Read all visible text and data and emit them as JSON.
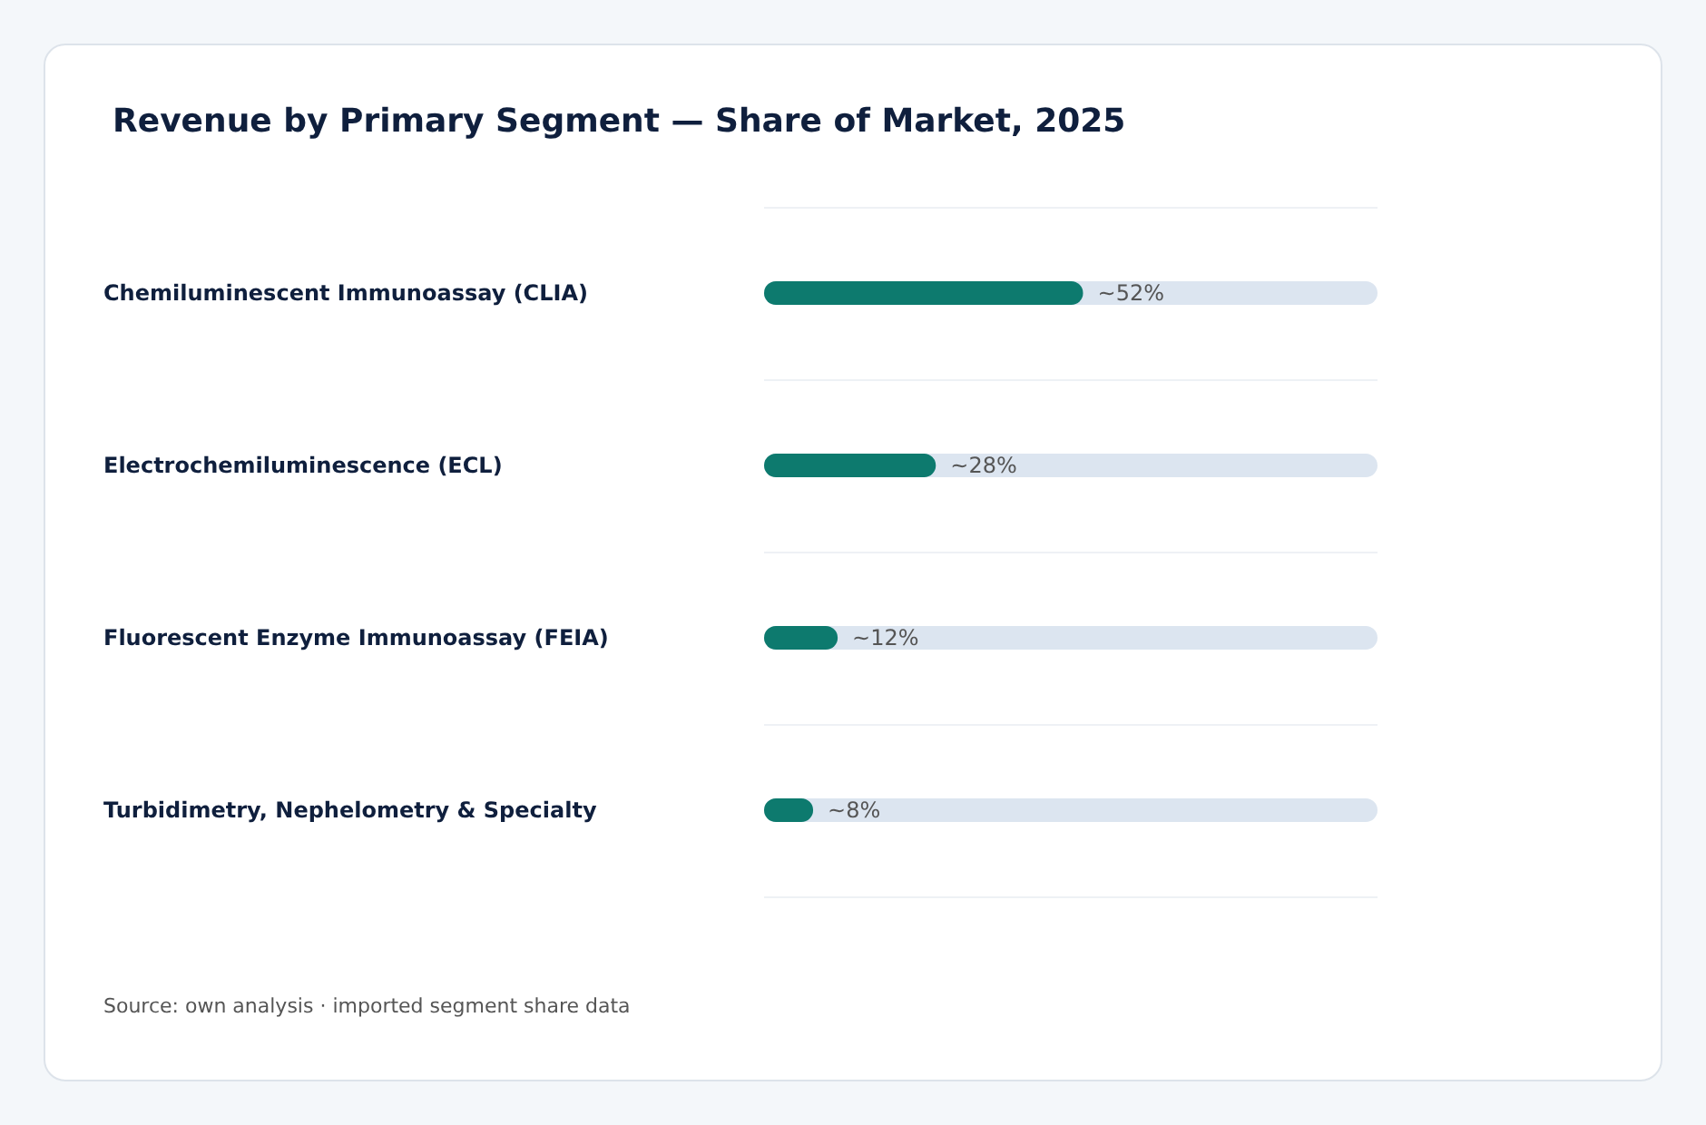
{
  "chart_data": {
    "type": "bar",
    "orientation": "horizontal",
    "title": "Revenue by Primary Segment — Share of Market, 2025",
    "categories": [
      "Chemiluminescent Immunoassay (CLIA)",
      "Electrochemiluminescence (ECL)",
      "Fluorescent Enzyme Immunoassay (FEIA)",
      "Turbidimetry, Nephelometry & Specialty"
    ],
    "values": [
      52,
      28,
      12,
      8
    ],
    "value_labels": [
      "~52%",
      "~28%",
      "~12%",
      "~8%"
    ],
    "color": "#0d7a6e",
    "xlim": [
      0,
      100
    ],
    "grid": "y",
    "annotations": [
      "Source: own analysis · imported segment share data"
    ]
  }
}
